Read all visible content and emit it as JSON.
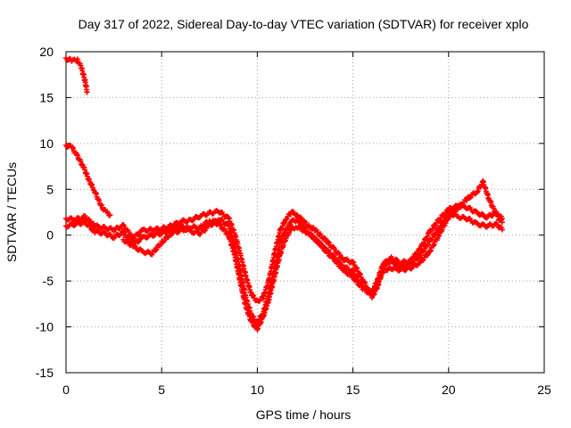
{
  "chart_data": {
    "type": "scatter",
    "title": "Day 317 of 2022, Sidereal Day-to-day VTEC variation (SDTVAR) for receiver xplo",
    "xlabel": "GPS time / hours",
    "ylabel": "SDTVAR / TECUs",
    "xlim": [
      0,
      25
    ],
    "ylim": [
      -15,
      20
    ],
    "xticks": [
      0,
      5,
      10,
      15,
      20,
      25
    ],
    "yticks": [
      -15,
      -10,
      -5,
      0,
      5,
      10,
      15,
      20
    ],
    "grid": true,
    "marker_color": "#ff0000",
    "series": [
      {
        "name": "arc-a",
        "x": [
          0.0,
          0.3,
          0.6,
          0.8,
          1.0,
          1.1
        ],
        "y": [
          19.3,
          19.0,
          19.1,
          18.3,
          16.8,
          15.6
        ]
      },
      {
        "name": "arc-b",
        "x": [
          0.0,
          0.3,
          0.6,
          0.9,
          1.2,
          1.5,
          1.7,
          1.9,
          2.1,
          2.3
        ],
        "y": [
          9.8,
          9.6,
          8.6,
          7.5,
          6.0,
          4.8,
          3.8,
          3.0,
          2.5,
          2.2
        ]
      },
      {
        "name": "arc-c",
        "x": [
          0.0,
          0.5,
          1.0,
          1.5,
          2.0,
          2.5,
          3.0,
          3.5,
          4.0,
          4.5,
          5.0,
          5.5,
          6.0,
          6.5,
          7.0,
          7.5,
          8.0,
          8.5,
          8.8,
          9.1,
          9.4,
          9.7,
          10.0,
          10.3,
          10.6,
          10.9,
          11.2,
          11.5,
          11.8,
          12.1,
          12.4,
          12.7,
          13.0,
          13.3,
          13.6,
          14.0,
          14.5,
          15.0,
          15.5,
          16.0,
          16.3,
          16.6,
          17.0,
          17.5,
          18.0,
          18.5,
          19.0,
          19.5,
          20.0,
          20.5,
          21.0,
          21.5,
          22.0,
          22.5,
          22.8
        ],
        "y": [
          1.8,
          1.7,
          2.0,
          1.0,
          0.8,
          0.6,
          1.0,
          -0.3,
          0.5,
          0.6,
          0.7,
          1.0,
          1.5,
          1.6,
          2.1,
          2.4,
          2.6,
          1.8,
          0.3,
          -2.0,
          -4.5,
          -6.5,
          -7.2,
          -6.8,
          -5.0,
          -2.0,
          0.5,
          1.8,
          2.5,
          2.2,
          1.5,
          1.0,
          0.6,
          0.0,
          -0.6,
          -1.5,
          -2.6,
          -3.0,
          -4.8,
          -6.8,
          -5.5,
          -3.5,
          -2.5,
          -3.0,
          -2.8,
          -1.5,
          0.3,
          1.7,
          2.8,
          3.2,
          3.0,
          2.4,
          2.0,
          2.4,
          1.8
        ]
      },
      {
        "name": "arc-d",
        "x": [
          0.0,
          0.5,
          1.0,
          1.5,
          2.0,
          2.5,
          3.0,
          3.5,
          4.0,
          4.5,
          5.0,
          5.5,
          6.0,
          6.5,
          7.0,
          7.5,
          8.0,
          8.5,
          8.8,
          9.1,
          9.4,
          9.7,
          10.0,
          10.3,
          10.6,
          10.9,
          11.2,
          11.5,
          11.8,
          12.1,
          12.4,
          12.7,
          13.0,
          13.3,
          13.6,
          14.0,
          14.5,
          15.0,
          15.5,
          16.0,
          16.3,
          16.6,
          17.0,
          17.5,
          18.0,
          18.5,
          19.0,
          19.5,
          20.0,
          20.5,
          21.0,
          21.5,
          22.0,
          22.5,
          22.8
        ],
        "y": [
          1.0,
          1.2,
          1.4,
          0.4,
          0.2,
          -0.2,
          0.3,
          -1.0,
          -0.3,
          0.0,
          0.2,
          0.5,
          1.0,
          0.4,
          0.2,
          1.0,
          1.8,
          1.0,
          -1.0,
          -3.8,
          -6.8,
          -8.8,
          -9.5,
          -8.5,
          -6.5,
          -3.5,
          -0.8,
          0.6,
          1.5,
          1.7,
          0.9,
          0.2,
          -0.4,
          -1.0,
          -1.6,
          -2.4,
          -3.4,
          -4.0,
          -5.6,
          -6.2,
          -4.8,
          -3.0,
          -2.8,
          -3.5,
          -3.2,
          -2.2,
          -0.7,
          0.8,
          2.5,
          2.0,
          1.8,
          1.2,
          1.0,
          1.2,
          0.6
        ]
      },
      {
        "name": "arc-e",
        "x": [
          3.0,
          3.5,
          4.0,
          4.5,
          5.0,
          5.5,
          6.0,
          6.5,
          7.0,
          7.5,
          8.0,
          8.5,
          8.8,
          9.1,
          9.4,
          9.7,
          10.0,
          10.3,
          10.6,
          10.9,
          11.2,
          11.5,
          11.8,
          12.1,
          12.4,
          12.7,
          13.0,
          13.3,
          13.6,
          14.0,
          14.5,
          15.0,
          15.5,
          16.0,
          16.3,
          16.6,
          17.0,
          17.5,
          18.0,
          18.5,
          19.0,
          19.5,
          20.0,
          20.5,
          21.0,
          21.5,
          21.8,
          22.1,
          22.5,
          22.8
        ],
        "y": [
          -0.5,
          -1.2,
          -1.8,
          -2.0,
          -0.8,
          0.2,
          0.5,
          0.9,
          0.8,
          1.6,
          1.2,
          0.0,
          -2.0,
          -5.0,
          -7.8,
          -9.5,
          -10.2,
          -9.0,
          -7.0,
          -4.5,
          -2.0,
          -0.3,
          0.8,
          0.9,
          0.5,
          0.2,
          -0.4,
          -1.0,
          -1.8,
          -2.6,
          -3.8,
          -4.6,
          -5.8,
          -6.5,
          -5.2,
          -3.8,
          -3.6,
          -3.8,
          -3.6,
          -3.0,
          -1.8,
          0.0,
          2.0,
          3.0,
          4.0,
          4.8,
          5.8,
          4.0,
          2.2,
          1.4
        ]
      }
    ]
  }
}
